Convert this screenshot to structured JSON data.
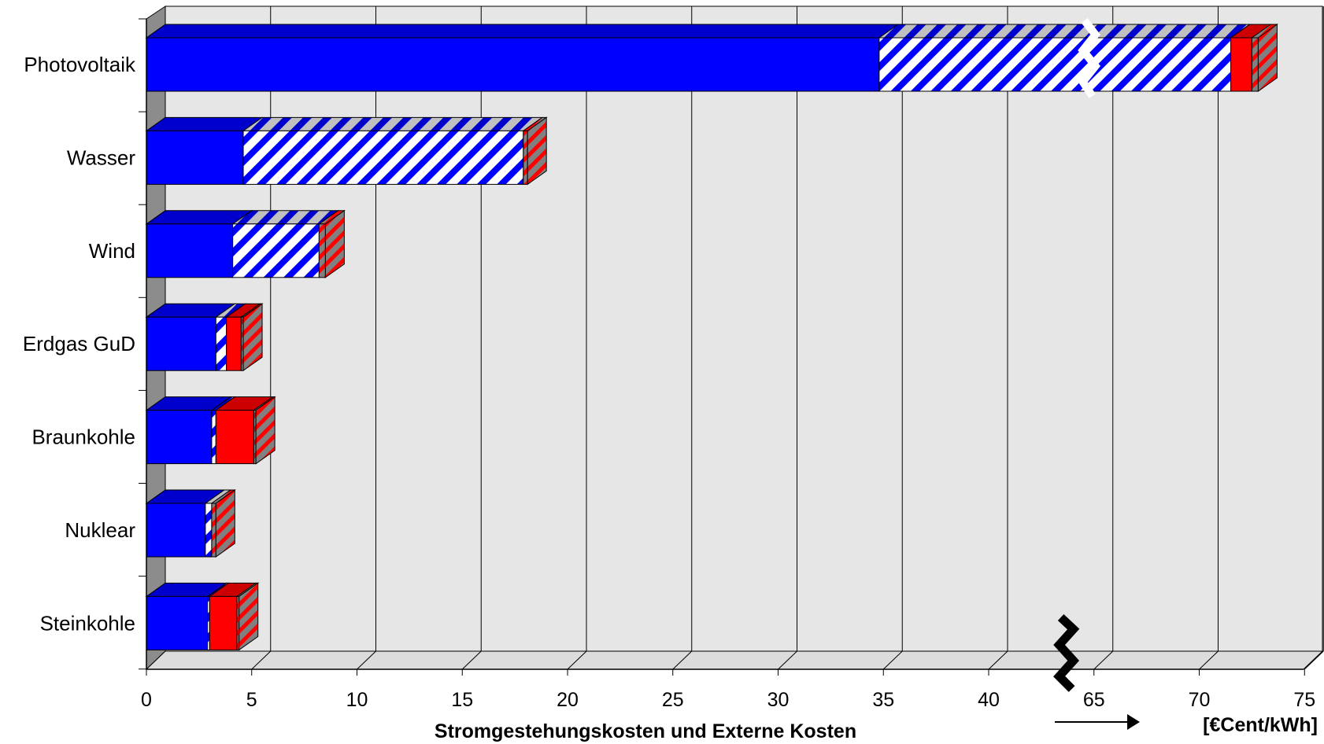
{
  "chart_data": {
    "type": "bar",
    "orientation": "horizontal",
    "stacked": true,
    "three_d": true,
    "title": "",
    "xlabel": "Stromgestehungskosten und Externe Kosten",
    "unit": "[€Cent/kWh]",
    "xlim": [
      0,
      75
    ],
    "x_break": {
      "from": 43.5,
      "to": 63.5
    },
    "grid": true,
    "legend": "none",
    "categories": [
      "Photovoltaik",
      "Wasser",
      "Wind",
      "Erdgas GuD",
      "Braunkohle",
      "Nuklear",
      "Steinkohle"
    ],
    "ticks": [
      {
        "value": 0,
        "label": "0"
      },
      {
        "value": 5,
        "label": "5"
      },
      {
        "value": 10,
        "label": "10"
      },
      {
        "value": 15,
        "label": "15"
      },
      {
        "value": 20,
        "label": "20"
      },
      {
        "value": 25,
        "label": "25"
      },
      {
        "value": 30,
        "label": "30"
      },
      {
        "value": 35,
        "label": "35"
      },
      {
        "value": 40,
        "label": "40"
      },
      {
        "value": 65,
        "label": "65"
      },
      {
        "value": 70,
        "label": "70"
      },
      {
        "value": 75,
        "label": "75"
      }
    ],
    "series": [
      {
        "color": "#0000ff",
        "pattern": "solid",
        "values": [
          34.8,
          4.6,
          4.1,
          3.3,
          3.1,
          2.8,
          2.9
        ]
      },
      {
        "color": "#0000ff",
        "pattern": "hatched",
        "values": [
          36.7,
          13.3,
          4.1,
          0.5,
          0.2,
          0.3,
          0.1
        ]
      },
      {
        "color": "#ff0000",
        "pattern": "solid",
        "values": [
          1.0,
          0.0,
          0.0,
          0.7,
          1.8,
          0.0,
          1.3
        ]
      },
      {
        "color": "#ff0000",
        "pattern": "hatched",
        "values": [
          0.3,
          0.2,
          0.3,
          0.1,
          0.1,
          0.2,
          0.1
        ]
      }
    ]
  }
}
